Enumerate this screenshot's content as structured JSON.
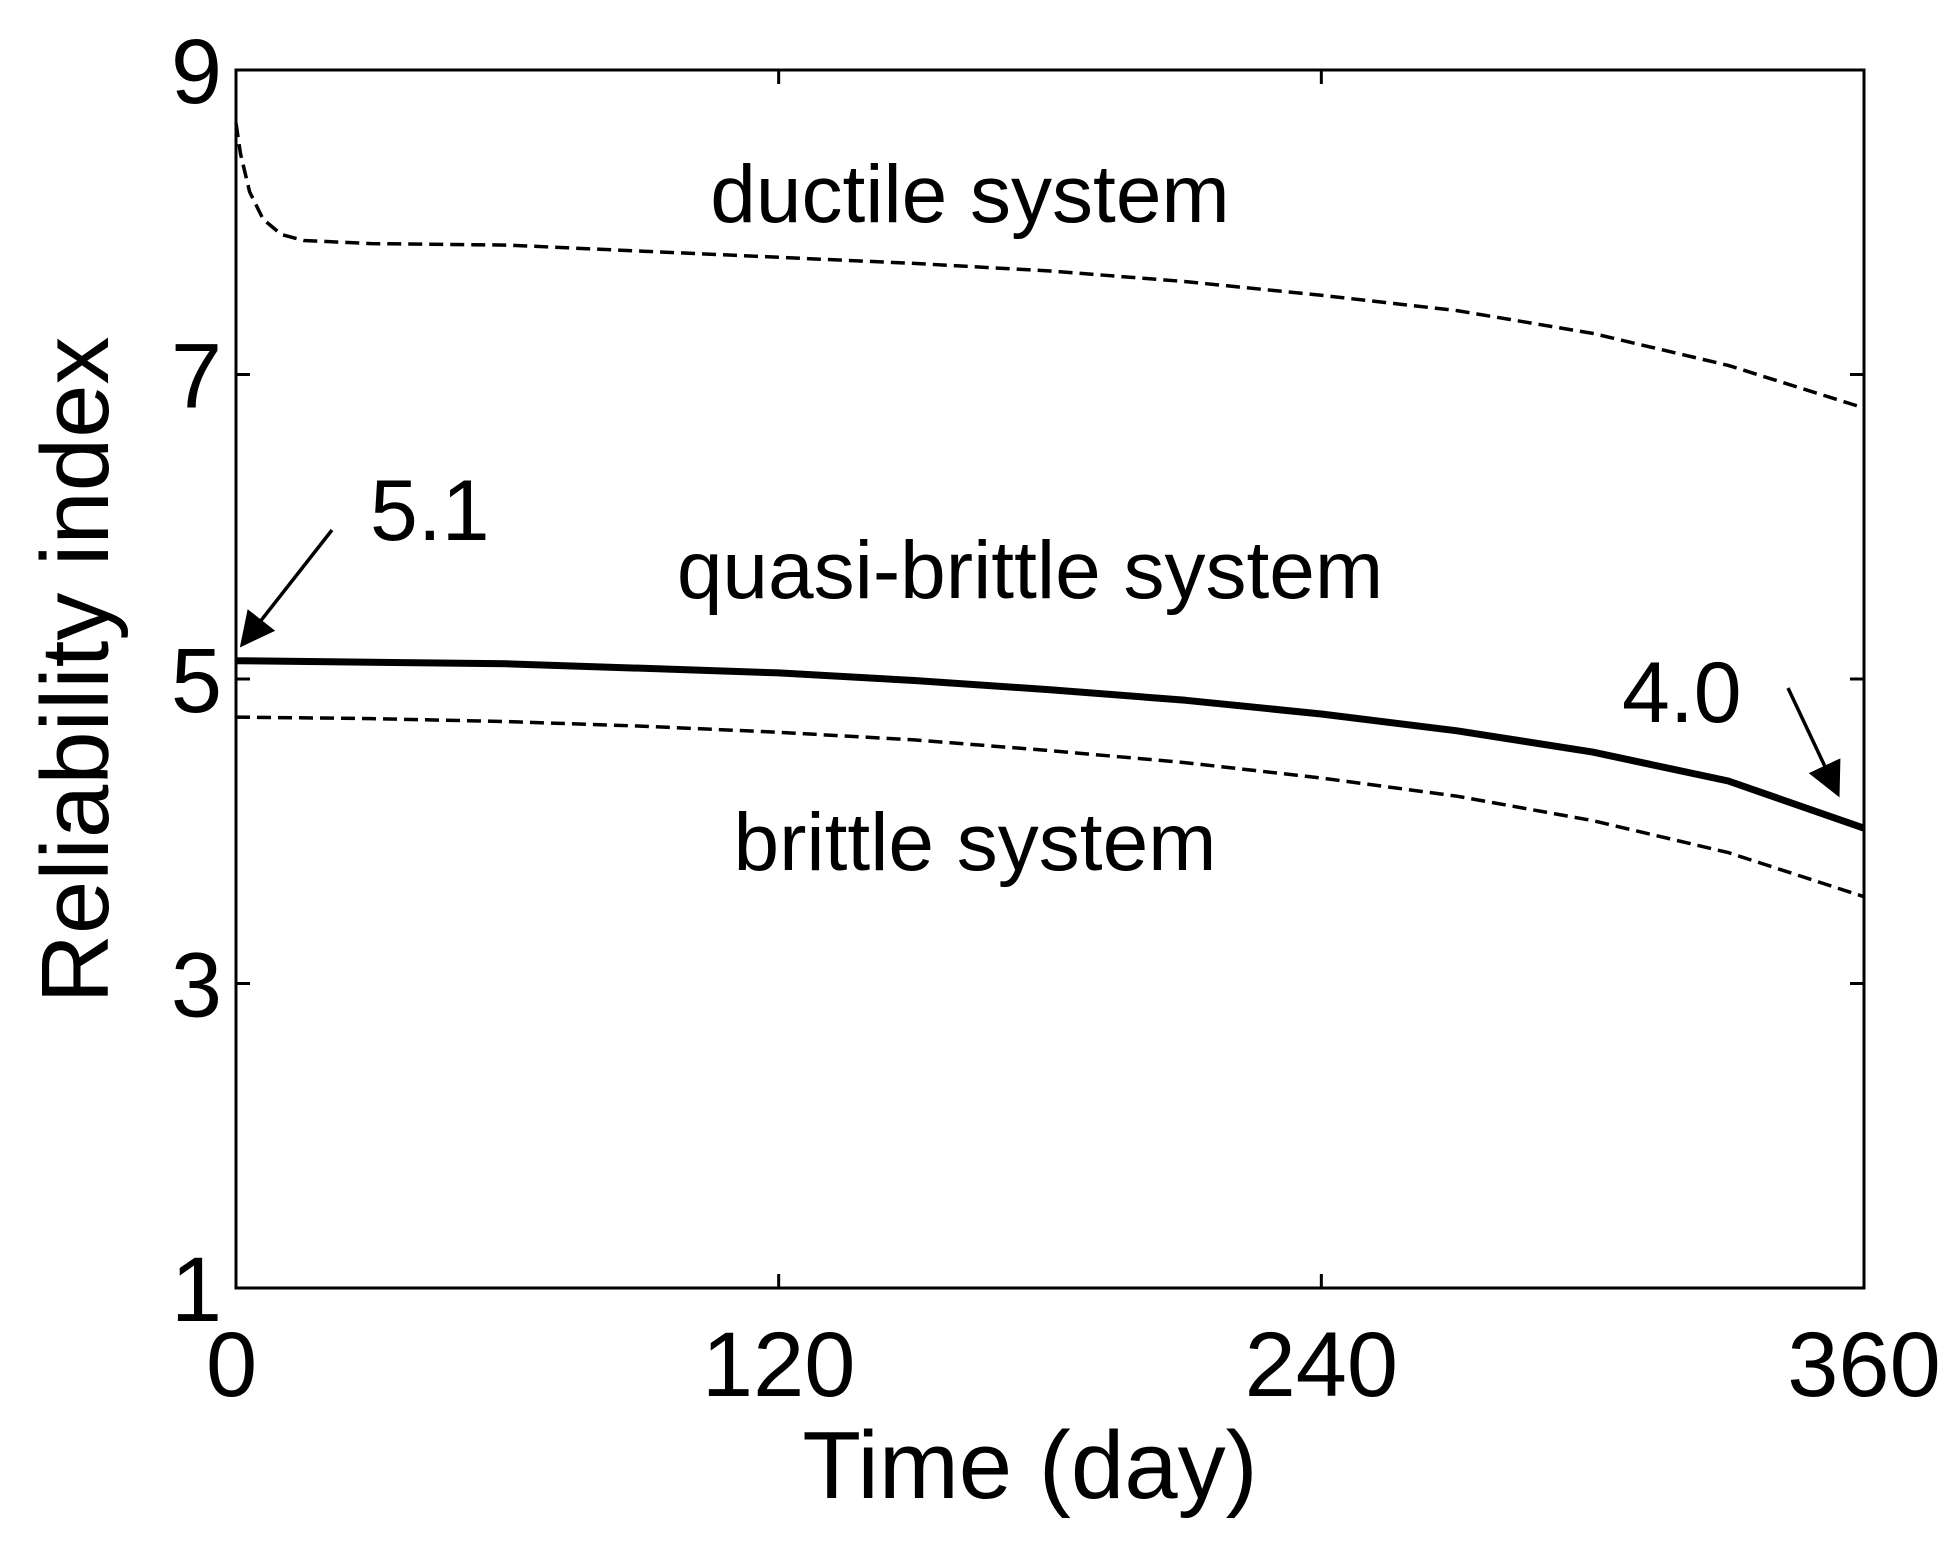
{
  "chart_data": {
    "type": "line",
    "title": "",
    "xlabel": "Time (day)",
    "ylabel": "Reliability index",
    "xlim": [
      0,
      360
    ],
    "ylim": [
      1,
      9
    ],
    "xticks": [
      0,
      120,
      240,
      360
    ],
    "yticks": [
      1,
      3,
      5,
      7,
      9
    ],
    "grid": false,
    "legend": "none",
    "series": [
      {
        "name": "ductile system",
        "style": "dashed",
        "points": [
          [
            0,
            8.65
          ],
          [
            1,
            8.45
          ],
          [
            3,
            8.2
          ],
          [
            6,
            8.02
          ],
          [
            10,
            7.92
          ],
          [
            15,
            7.88
          ],
          [
            30,
            7.86
          ],
          [
            60,
            7.85
          ],
          [
            90,
            7.81
          ],
          [
            120,
            7.77
          ],
          [
            150,
            7.73
          ],
          [
            180,
            7.68
          ],
          [
            210,
            7.61
          ],
          [
            240,
            7.52
          ],
          [
            270,
            7.42
          ],
          [
            300,
            7.27
          ],
          [
            330,
            7.06
          ],
          [
            360,
            6.78
          ]
        ]
      },
      {
        "name": "quasi-brittle system",
        "style": "solid",
        "points": [
          [
            0,
            5.12
          ],
          [
            30,
            5.11
          ],
          [
            60,
            5.1
          ],
          [
            90,
            5.07
          ],
          [
            120,
            5.04
          ],
          [
            150,
            4.99
          ],
          [
            180,
            4.93
          ],
          [
            210,
            4.86
          ],
          [
            240,
            4.77
          ],
          [
            270,
            4.66
          ],
          [
            300,
            4.52
          ],
          [
            330,
            4.33
          ],
          [
            360,
            4.02
          ]
        ]
      },
      {
        "name": "brittle system",
        "style": "dashed",
        "points": [
          [
            0,
            4.75
          ],
          [
            30,
            4.74
          ],
          [
            60,
            4.72
          ],
          [
            90,
            4.69
          ],
          [
            120,
            4.65
          ],
          [
            150,
            4.6
          ],
          [
            180,
            4.53
          ],
          [
            210,
            4.45
          ],
          [
            240,
            4.35
          ],
          [
            270,
            4.23
          ],
          [
            300,
            4.07
          ],
          [
            330,
            3.86
          ],
          [
            360,
            3.57
          ]
        ]
      }
    ],
    "annotations": [
      {
        "text": "5.1",
        "x": 0,
        "y": 5.12
      },
      {
        "text": "4.0",
        "x": 360,
        "y": 4.02
      }
    ]
  }
}
